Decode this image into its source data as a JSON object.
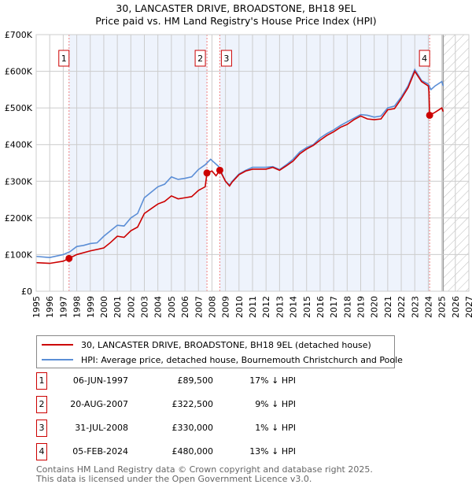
{
  "chart_data": {
    "type": "line",
    "title": "30, LANCASTER DRIVE, BROADSTONE, BH18 9EL",
    "subtitle": "Price paid vs. HM Land Registry's House Price Index (HPI)",
    "xlim": [
      1995,
      2027
    ],
    "ylim": [
      0,
      700000
    ],
    "y_ticks": [
      "£0",
      "£100K",
      "£200K",
      "£300K",
      "£400K",
      "£500K",
      "£600K",
      "£700K"
    ],
    "x_ticks": [
      "1995",
      "1996",
      "1997",
      "1998",
      "1999",
      "2000",
      "2001",
      "2002",
      "2003",
      "2004",
      "2005",
      "2006",
      "2007",
      "2008",
      "2009",
      "2010",
      "2011",
      "2012",
      "2013",
      "2014",
      "2015",
      "2016",
      "2017",
      "2018",
      "2019",
      "2020",
      "2021",
      "2022",
      "2023",
      "2024",
      "2025",
      "2026",
      "2027"
    ],
    "forecast_start": 2025.1,
    "colors": {
      "property": "#cc0000",
      "hpi": "#5b8ed6"
    },
    "series": [
      {
        "name": "30, LANCASTER DRIVE, BROADSTONE, BH18 9EL (detached house)",
        "points": [
          [
            1995,
            78
          ],
          [
            1996,
            76
          ],
          [
            1997,
            82
          ],
          [
            1997.43,
            89.5
          ],
          [
            1998,
            100
          ],
          [
            1999,
            110
          ],
          [
            2000,
            118
          ],
          [
            2000.5,
            133
          ],
          [
            2001,
            150
          ],
          [
            2001.5,
            147
          ],
          [
            2002,
            165
          ],
          [
            2002.5,
            175
          ],
          [
            2003,
            212
          ],
          [
            2003.5,
            225
          ],
          [
            2004,
            238
          ],
          [
            2004.5,
            245
          ],
          [
            2005,
            260
          ],
          [
            2005.5,
            252
          ],
          [
            2006,
            255
          ],
          [
            2006.5,
            258
          ],
          [
            2007,
            275
          ],
          [
            2007.5,
            285
          ],
          [
            2007.63,
            322.5
          ],
          [
            2008,
            328
          ],
          [
            2008.3,
            315
          ],
          [
            2008.58,
            330
          ],
          [
            2009,
            300
          ],
          [
            2009.3,
            287
          ],
          [
            2009.5,
            298
          ],
          [
            2010,
            318
          ],
          [
            2010.5,
            328
          ],
          [
            2011,
            333
          ],
          [
            2012,
            333
          ],
          [
            2012.5,
            338
          ],
          [
            2013,
            330
          ],
          [
            2013.5,
            342
          ],
          [
            2014,
            355
          ],
          [
            2014.5,
            375
          ],
          [
            2015,
            388
          ],
          [
            2015.5,
            398
          ],
          [
            2016,
            412
          ],
          [
            2016.5,
            425
          ],
          [
            2017,
            435
          ],
          [
            2017.5,
            447
          ],
          [
            2018,
            455
          ],
          [
            2018.5,
            468
          ],
          [
            2019,
            478
          ],
          [
            2019.5,
            470
          ],
          [
            2020,
            468
          ],
          [
            2020.5,
            470
          ],
          [
            2021,
            495
          ],
          [
            2021.5,
            498
          ],
          [
            2022,
            525
          ],
          [
            2022.5,
            555
          ],
          [
            2023,
            600
          ],
          [
            2023.5,
            572
          ],
          [
            2024,
            560
          ],
          [
            2024.05,
            545
          ],
          [
            2024.1,
            480
          ],
          [
            2024.5,
            488
          ],
          [
            2025,
            500
          ],
          [
            2025.1,
            490
          ]
        ]
      },
      {
        "name": "HPI: Average price, detached house, Bournemouth Christchurch and Poole",
        "points": [
          [
            1995,
            95
          ],
          [
            1996,
            92
          ],
          [
            1997,
            100
          ],
          [
            1997.5,
            108
          ],
          [
            1998,
            122
          ],
          [
            1998.5,
            125
          ],
          [
            1999,
            130
          ],
          [
            1999.5,
            132
          ],
          [
            2000,
            150
          ],
          [
            2000.5,
            165
          ],
          [
            2001,
            180
          ],
          [
            2001.5,
            178
          ],
          [
            2002,
            200
          ],
          [
            2002.5,
            212
          ],
          [
            2003,
            255
          ],
          [
            2003.5,
            270
          ],
          [
            2004,
            285
          ],
          [
            2004.5,
            292
          ],
          [
            2005,
            312
          ],
          [
            2005.5,
            305
          ],
          [
            2006,
            308
          ],
          [
            2006.5,
            312
          ],
          [
            2007,
            332
          ],
          [
            2007.5,
            345
          ],
          [
            2007.9,
            360
          ],
          [
            2008.5,
            340
          ],
          [
            2009,
            300
          ],
          [
            2009.3,
            290
          ],
          [
            2009.5,
            300
          ],
          [
            2010,
            320
          ],
          [
            2010.5,
            330
          ],
          [
            2011,
            338
          ],
          [
            2012,
            338
          ],
          [
            2012.5,
            340
          ],
          [
            2013,
            332
          ],
          [
            2013.5,
            345
          ],
          [
            2014,
            360
          ],
          [
            2014.5,
            380
          ],
          [
            2015,
            392
          ],
          [
            2015.5,
            400
          ],
          [
            2016,
            418
          ],
          [
            2016.5,
            430
          ],
          [
            2017,
            440
          ],
          [
            2017.5,
            452
          ],
          [
            2018,
            462
          ],
          [
            2018.5,
            472
          ],
          [
            2019,
            482
          ],
          [
            2019.5,
            480
          ],
          [
            2020,
            475
          ],
          [
            2020.5,
            478
          ],
          [
            2021,
            500
          ],
          [
            2021.5,
            505
          ],
          [
            2022,
            530
          ],
          [
            2022.5,
            560
          ],
          [
            2023,
            605
          ],
          [
            2023.5,
            575
          ],
          [
            2024,
            565
          ],
          [
            2024.2,
            550
          ],
          [
            2024.5,
            560
          ],
          [
            2025,
            572
          ],
          [
            2025.1,
            560
          ]
        ]
      }
    ],
    "sales": [
      {
        "num": "1",
        "x": 1997.43,
        "value": 89.5,
        "date": "06-JUN-1997",
        "price": "£89,500",
        "hpi": "17% ↓ HPI"
      },
      {
        "num": "2",
        "x": 2007.63,
        "value": 322.5,
        "date": "20-AUG-2007",
        "price": "£322,500",
        "hpi": "9% ↓ HPI"
      },
      {
        "num": "3",
        "x": 2008.58,
        "value": 330,
        "date": "31-JUL-2008",
        "price": "£330,000",
        "hpi": "1% ↓ HPI"
      },
      {
        "num": "4",
        "x": 2024.1,
        "value": 480,
        "date": "05-FEB-2024",
        "price": "£480,000",
        "hpi": "13% ↓ HPI"
      }
    ]
  },
  "footer": {
    "line1": "Contains HM Land Registry data © Crown copyright and database right 2025.",
    "line2": "This data is licensed under the Open Government Licence v3.0."
  }
}
